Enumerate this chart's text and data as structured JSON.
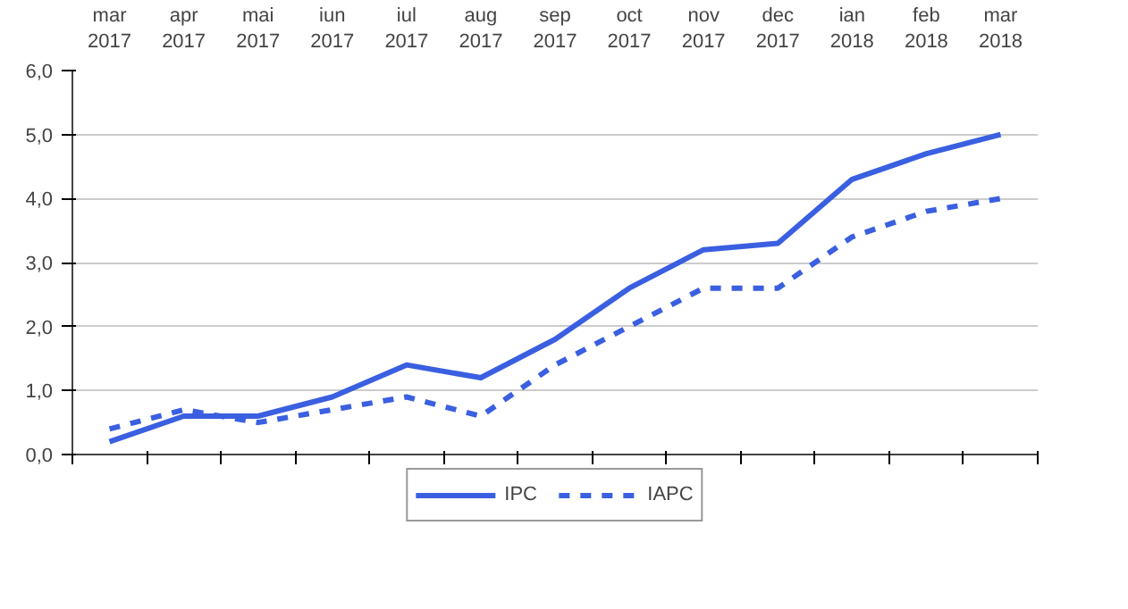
{
  "chart_data": {
    "type": "line",
    "categories": [
      "mar 2017",
      "apr 2017",
      "mai 2017",
      "iun 2017",
      "iul 2017",
      "aug 2017",
      "sep 2017",
      "oct 2017",
      "nov 2017",
      "dec 2017",
      "ian 2018",
      "feb 2018",
      "mar 2018"
    ],
    "series": [
      {
        "name": "IPC",
        "color": "#3a5fe0",
        "line_style": "solid",
        "values": [
          0.2,
          0.6,
          0.6,
          0.9,
          1.4,
          1.2,
          1.8,
          2.6,
          3.2,
          3.3,
          4.3,
          4.7,
          5.0
        ]
      },
      {
        "name": "IAPC",
        "color": "#3a5fe0",
        "line_style": "dashed",
        "values": [
          0.4,
          0.7,
          0.5,
          0.7,
          0.9,
          0.6,
          1.4,
          2.0,
          2.6,
          2.6,
          3.4,
          3.8,
          4.0
        ]
      }
    ],
    "ylim": [
      0,
      6
    ],
    "yticks": [
      {
        "value": 0,
        "label": "0,0"
      },
      {
        "value": 1,
        "label": "1,0"
      },
      {
        "value": 2,
        "label": "2,0"
      },
      {
        "value": 3,
        "label": "3,0"
      },
      {
        "value": 4,
        "label": "4,0"
      },
      {
        "value": 5,
        "label": "5,0"
      },
      {
        "value": 6,
        "label": "6,0"
      }
    ],
    "grid": "y",
    "legend": "bottom",
    "marker": "none"
  }
}
